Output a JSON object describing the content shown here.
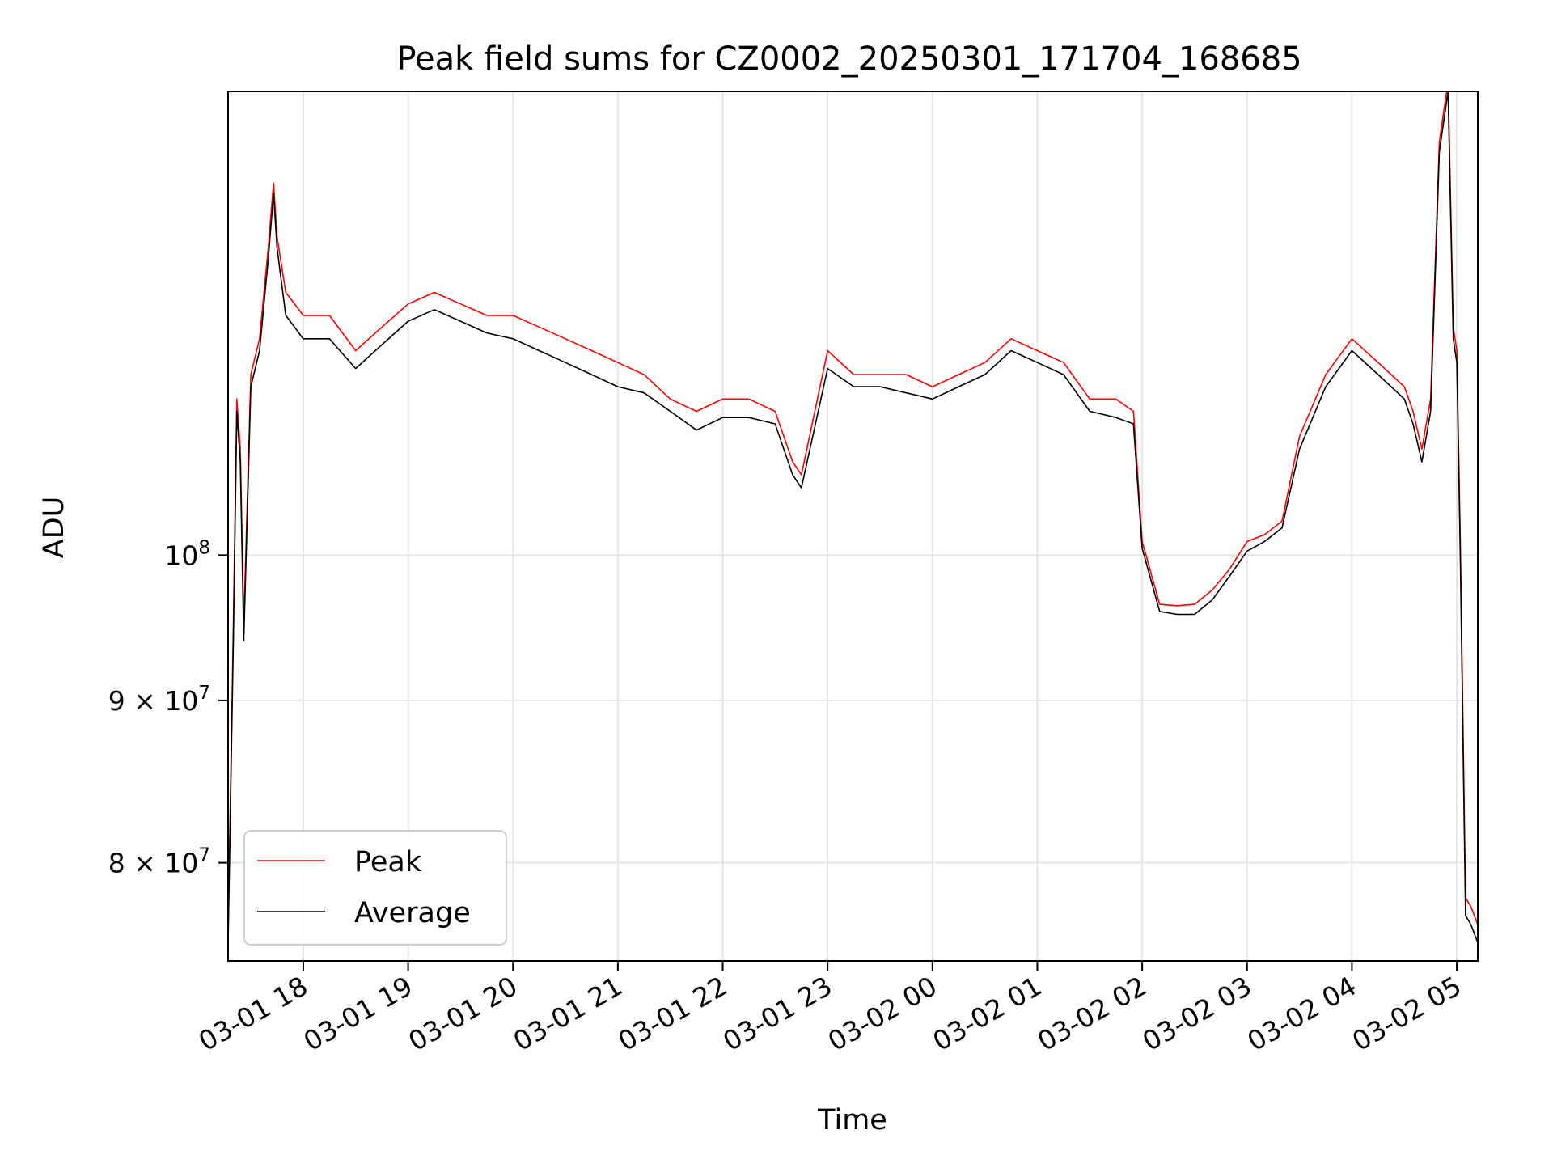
{
  "chart_data": {
    "type": "line",
    "title": "Peak field sums for CZ0002_20250301_171704_168685",
    "xlabel": "Time",
    "ylabel": "ADU",
    "yscale": "log",
    "ylim": [
      74500000,
      140000000
    ],
    "xlim": [
      "03-01 17:17",
      "03-02 05:12"
    ],
    "grid": true,
    "legend_position": "lower-left",
    "x_ticks": [
      "03-01 18",
      "03-01 19",
      "03-01 20",
      "03-01 21",
      "03-01 22",
      "03-01 23",
      "03-02 00",
      "03-02 01",
      "03-02 02",
      "03-02 03",
      "03-02 04",
      "03-02 05"
    ],
    "y_ticks": [
      {
        "value": 80000000,
        "base": "8",
        "mid": "×",
        "pow": "10",
        "exp": "7"
      },
      {
        "value": 90000000,
        "base": "9",
        "mid": "×",
        "pow": "10",
        "exp": "7"
      },
      {
        "value": 100000000,
        "base": "",
        "mid": "",
        "pow": "10",
        "exp": "8"
      }
    ],
    "x": [
      "03-01 17:17",
      "03-01 17:20",
      "03-01 17:22",
      "03-01 17:24",
      "03-01 17:26",
      "03-01 17:30",
      "03-01 17:35",
      "03-01 17:40",
      "03-01 17:43",
      "03-01 17:45",
      "03-01 17:50",
      "03-01 18:00",
      "03-01 18:15",
      "03-01 18:30",
      "03-01 18:45",
      "03-01 19:00",
      "03-01 19:15",
      "03-01 19:30",
      "03-01 19:45",
      "03-01 20:00",
      "03-01 20:15",
      "03-01 20:30",
      "03-01 20:45",
      "03-01 21:00",
      "03-01 21:15",
      "03-01 21:30",
      "03-01 21:45",
      "03-01 22:00",
      "03-01 22:15",
      "03-01 22:30",
      "03-01 22:40",
      "03-01 22:45",
      "03-01 23:00",
      "03-01 23:15",
      "03-01 23:30",
      "03-01 23:45",
      "03-02 00:00",
      "03-02 00:15",
      "03-02 00:30",
      "03-02 00:45",
      "03-02 01:00",
      "03-02 01:15",
      "03-02 01:30",
      "03-02 01:45",
      "03-02 01:55",
      "03-02 02:00",
      "03-02 02:10",
      "03-02 02:20",
      "03-02 02:30",
      "03-02 02:40",
      "03-02 02:50",
      "03-02 03:00",
      "03-02 03:10",
      "03-02 03:20",
      "03-02 03:30",
      "03-02 03:45",
      "03-02 04:00",
      "03-02 04:15",
      "03-02 04:30",
      "03-02 04:35",
      "03-02 04:40",
      "03-02 04:45",
      "03-02 04:50",
      "03-02 04:55",
      "03-02 04:58",
      "03-02 05:00",
      "03-02 05:02",
      "03-02 05:05",
      "03-02 05:08",
      "03-02 05:12"
    ],
    "series": [
      {
        "name": "Peak",
        "color": "#ff0000",
        "values": [
          76000000,
          95000000,
          112000000,
          108000000,
          95000000,
          114000000,
          117000000,
          125000000,
          131000000,
          126000000,
          121000000,
          119000000,
          119000000,
          116000000,
          118000000,
          120000000,
          121000000,
          120000000,
          119000000,
          119000000,
          118000000,
          117000000,
          116000000,
          115000000,
          114000000,
          112000000,
          111000000,
          112000000,
          112000000,
          111000000,
          107000000,
          106000000,
          116000000,
          114000000,
          114000000,
          114000000,
          113000000,
          114000000,
          115000000,
          117000000,
          116000000,
          115000000,
          112000000,
          112000000,
          111000000,
          101000000,
          96500000,
          96400000,
          96500000,
          97500000,
          99000000,
          101000000,
          101500000,
          102500000,
          109000000,
          114000000,
          117000000,
          115000000,
          113000000,
          111000000,
          108000000,
          112000000,
          135000000,
          141000000,
          118000000,
          116000000,
          101000000,
          78000000,
          77500000,
          76500000
        ]
      },
      {
        "name": "Average",
        "color": "#000000",
        "values": [
          75500000,
          94000000,
          111000000,
          107000000,
          94000000,
          113000000,
          116000000,
          124000000,
          130000000,
          125000000,
          119000000,
          117000000,
          117000000,
          114500000,
          116500000,
          118500000,
          119500000,
          118500000,
          117500000,
          117000000,
          116000000,
          115000000,
          114000000,
          113000000,
          112500000,
          111000000,
          109500000,
          110500000,
          110500000,
          110000000,
          106000000,
          105000000,
          114500000,
          113000000,
          113000000,
          112500000,
          112000000,
          113000000,
          114000000,
          116000000,
          115000000,
          114000000,
          111000000,
          110500000,
          110000000,
          100500000,
          96000000,
          95800000,
          95800000,
          96800000,
          98500000,
          100300000,
          101000000,
          102000000,
          108000000,
          113000000,
          116000000,
          114000000,
          112000000,
          110000000,
          107000000,
          111000000,
          134000000,
          140000000,
          117000000,
          115000000,
          100000000,
          77000000,
          76500000,
          75500000
        ]
      }
    ]
  }
}
